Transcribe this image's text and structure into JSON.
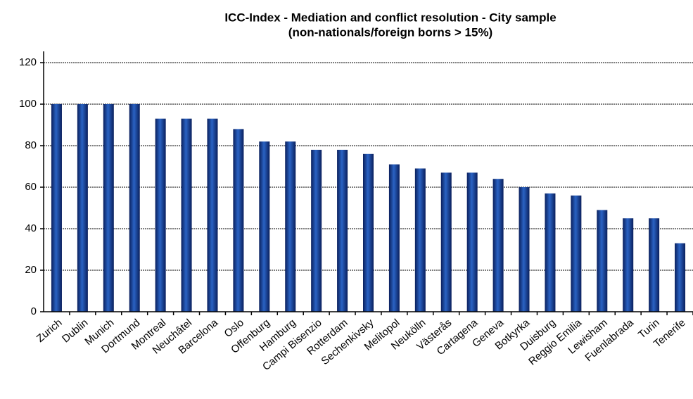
{
  "chart_data": {
    "type": "bar",
    "title": "ICC-Index - Mediation and conflict resolution - City sample",
    "subtitle": "(non-nationals/foreign borns > 15%)",
    "categories": [
      "Zurich",
      "Dublin",
      "Munich",
      "Dortmund",
      "Montreal",
      "Neuchâtel",
      "Barcelona",
      "Oslo",
      "Offenburg",
      "Hamburg",
      "Campi Bisenzio",
      "Rotterdam",
      "Sechenkivsky",
      "Melitopol",
      "Neukölln",
      "Västerås",
      "Cartagena",
      "Geneva",
      "Botkyrka",
      "Duisburg",
      "Reggio Emilia",
      "Lewisham",
      "Fuenlabrada",
      "Turin",
      "Tenerife"
    ],
    "values": [
      100,
      100,
      100,
      100,
      93,
      93,
      93,
      88,
      82,
      82,
      78,
      78,
      76,
      71,
      69,
      67,
      67,
      64,
      60,
      57,
      56,
      49,
      45,
      45,
      33
    ],
    "color": "#2a63c4",
    "ylim": [
      0,
      120
    ],
    "yticks": [
      0,
      20,
      40,
      60,
      80,
      100,
      120
    ],
    "grid": true
  }
}
